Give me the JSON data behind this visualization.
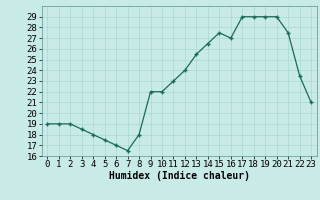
{
  "x": [
    0,
    1,
    2,
    3,
    4,
    5,
    6,
    7,
    8,
    9,
    10,
    11,
    12,
    13,
    14,
    15,
    16,
    17,
    18,
    19,
    20,
    21,
    22,
    23
  ],
  "y": [
    19.0,
    19.0,
    19.0,
    18.5,
    18.0,
    17.5,
    17.0,
    16.5,
    18.0,
    22.0,
    22.0,
    23.0,
    24.0,
    25.5,
    26.5,
    27.5,
    27.0,
    29.0,
    29.0,
    29.0,
    29.0,
    27.5,
    23.5,
    21.0
  ],
  "xlabel": "Humidex (Indice chaleur)",
  "ylim": [
    16,
    30
  ],
  "xlim": [
    -0.5,
    23.5
  ],
  "yticks": [
    16,
    17,
    18,
    19,
    20,
    21,
    22,
    23,
    24,
    25,
    26,
    27,
    28,
    29
  ],
  "xticks": [
    0,
    1,
    2,
    3,
    4,
    5,
    6,
    7,
    8,
    9,
    10,
    11,
    12,
    13,
    14,
    15,
    16,
    17,
    18,
    19,
    20,
    21,
    22,
    23
  ],
  "line_color": "#1a6b5a",
  "marker": "+",
  "bg_color": "#c8ebe8",
  "grid_color": "#aad8d3",
  "label_fontsize": 7,
  "tick_fontsize": 6.5
}
